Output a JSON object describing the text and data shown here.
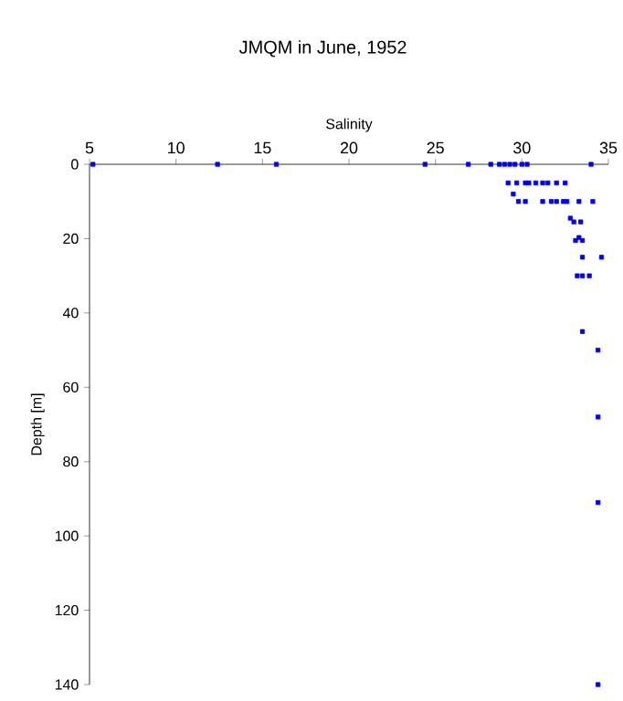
{
  "chart_data": {
    "type": "scatter",
    "title": "JMQM in June, 1952",
    "xlabel": "Salinity",
    "ylabel": "Depth [m]",
    "x": [
      5.2,
      12.4,
      15.8,
      24.4,
      26.9,
      28.2,
      28.7,
      29.0,
      29.3,
      29.6,
      30.0,
      30.3,
      34.0,
      29.2,
      29.7,
      30.2,
      30.4,
      30.8,
      31.2,
      31.5,
      32.0,
      32.5,
      29.5,
      29.8,
      30.2,
      31.2,
      31.7,
      32.0,
      32.4,
      32.6,
      33.3,
      34.1,
      32.8,
      33.0,
      33.4,
      33.3,
      33.1,
      33.5,
      33.5,
      34.6,
      33.2,
      33.5,
      33.9,
      33.5,
      34.4,
      34.4,
      34.4,
      34.4
    ],
    "values": [
      0,
      0,
      0,
      0,
      0,
      0,
      0,
      0,
      0,
      0,
      0,
      0,
      0,
      5,
      5,
      5,
      5,
      5,
      5,
      5,
      5,
      5,
      8,
      10,
      10,
      10,
      10,
      10,
      10,
      10,
      10,
      10,
      14.5,
      15.5,
      15.5,
      19.7,
      20.5,
      20.5,
      25,
      25,
      30,
      30,
      30,
      45,
      50,
      68,
      91,
      140
    ],
    "color": "#0000ff",
    "marker": "square",
    "xlim": [
      5,
      35
    ],
    "xticks": [
      5,
      10,
      15,
      20,
      25,
      30,
      35
    ],
    "ylim": [
      140,
      0
    ],
    "yticks": [
      0,
      20,
      40,
      60,
      80,
      100,
      120,
      140
    ]
  }
}
